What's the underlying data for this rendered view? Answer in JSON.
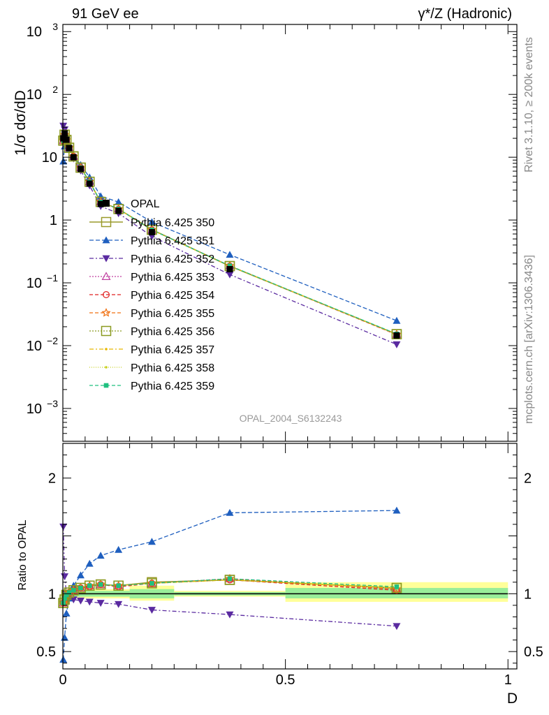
{
  "chart_data": {
    "type": "line",
    "header": {
      "left": "91 GeV ee",
      "right": "γ*/Z (Hadronic)"
    },
    "side_labels": {
      "rivet": "Rivet 3.1.10, ≥ 200k events",
      "source": "mcplots.cern.ch [arXiv:1306.3436]"
    },
    "analysis_label": "OPAL_2004_S6132243",
    "xlabel": "D",
    "upper": {
      "ylabel": "1/σ dσ/dD",
      "yscale": "log",
      "ylim": [
        0.0003,
        1300
      ],
      "ytick_values": [
        0.001,
        0.01,
        0.1,
        1,
        10,
        100,
        1000
      ],
      "ytick_labels": [
        {
          "base": "10",
          "exp": "−3"
        },
        {
          "base": "10",
          "exp": "−2"
        },
        {
          "base": "10",
          "exp": "−1"
        },
        {
          "base": "1",
          "exp": ""
        },
        {
          "base": "10",
          "exp": ""
        },
        {
          "base": "10",
          "exp": "2"
        },
        {
          "base": "10",
          "exp": "3"
        }
      ]
    },
    "lower": {
      "ylabel": "Ratio to OPAL",
      "ylim": [
        0.35,
        2.3
      ],
      "ytick_values": [
        0.5,
        1,
        2
      ],
      "ytick_labels": [
        "0.5",
        "1",
        "2"
      ]
    },
    "xlim": [
      0,
      1.02
    ],
    "xtick_values": [
      0,
      0.5,
      1
    ],
    "xtick_labels": [
      "0",
      "0.5",
      "1"
    ],
    "x": [
      0.001,
      0.004,
      0.008,
      0.014,
      0.024,
      0.04,
      0.06,
      0.085,
      0.125,
      0.2,
      0.375,
      0.75
    ],
    "data": {
      "name": "OPAL",
      "values": [
        20,
        24,
        19,
        14,
        10,
        6.5,
        3.8,
        1.8,
        1.4,
        0.64,
        0.165,
        0.0145
      ],
      "bands": [
        {
          "x0": 0.0,
          "x1": 0.15,
          "inner": [
            0.975,
            1.025
          ],
          "outer": [
            0.96,
            1.04
          ]
        },
        {
          "x0": 0.15,
          "x1": 0.25,
          "inner": [
            0.96,
            1.04
          ],
          "outer": [
            0.94,
            1.07
          ]
        },
        {
          "x0": 0.25,
          "x1": 0.5,
          "inner": [
            0.985,
            1.015
          ],
          "outer": [
            0.975,
            1.025
          ]
        },
        {
          "x0": 0.5,
          "x1": 1.0,
          "inner": [
            0.96,
            1.05
          ],
          "outer": [
            0.93,
            1.1
          ]
        }
      ]
    },
    "series": [
      {
        "name": "Pythia 6.425 350",
        "color": "#9a9a2a",
        "dash": "",
        "marker": "square-open",
        "ratio": [
          0.92,
          0.95,
          0.99,
          1.01,
          1.03,
          1.05,
          1.07,
          1.08,
          1.07,
          1.1,
          1.12,
          1.05
        ]
      },
      {
        "name": "Pythia 6.425 351",
        "color": "#1f5fbf",
        "dash": "6,3",
        "marker": "triangle-up",
        "ratio": [
          0.43,
          0.62,
          0.83,
          0.96,
          1.07,
          1.16,
          1.26,
          1.33,
          1.38,
          1.45,
          1.7,
          1.72
        ]
      },
      {
        "name": "Pythia 6.425 352",
        "color": "#5a2aa0",
        "dash": "6,3,2,3",
        "marker": "triangle-down",
        "ratio": [
          1.58,
          1.15,
          1.0,
          0.97,
          0.95,
          0.94,
          0.93,
          0.92,
          0.91,
          0.86,
          0.82,
          0.72
        ]
      },
      {
        "name": "Pythia 6.425 353",
        "color": "#c040a0",
        "dash": "2,2",
        "marker": "triangle-open",
        "ratio": [
          0.92,
          0.95,
          0.99,
          1.01,
          1.03,
          1.05,
          1.07,
          1.08,
          1.07,
          1.09,
          1.13,
          1.04
        ]
      },
      {
        "name": "Pythia 6.425 354",
        "color": "#e02020",
        "dash": "5,3",
        "marker": "circle-open",
        "ratio": [
          0.92,
          0.95,
          0.98,
          1.01,
          1.03,
          1.05,
          1.06,
          1.08,
          1.06,
          1.09,
          1.12,
          1.03
        ]
      },
      {
        "name": "Pythia 6.425 355",
        "color": "#f07010",
        "dash": "5,3",
        "marker": "star-open",
        "ratio": [
          0.92,
          0.95,
          0.99,
          1.01,
          1.03,
          1.05,
          1.07,
          1.08,
          1.07,
          1.09,
          1.13,
          1.04
        ]
      },
      {
        "name": "Pythia 6.425 356",
        "color": "#8a9a20",
        "dash": "2,2",
        "marker": "square-open",
        "ratio": [
          0.92,
          0.95,
          0.99,
          1.01,
          1.03,
          1.05,
          1.07,
          1.08,
          1.07,
          1.09,
          1.12,
          1.05
        ]
      },
      {
        "name": "Pythia 6.425 357",
        "color": "#e8b800",
        "dash": "6,3,2,3",
        "marker": "small",
        "ratio": [
          0.92,
          0.95,
          0.99,
          1.01,
          1.03,
          1.05,
          1.07,
          1.08,
          1.07,
          1.09,
          1.12,
          1.05
        ]
      },
      {
        "name": "Pythia 6.425 358",
        "color": "#c8d020",
        "dash": "1,2",
        "marker": "small",
        "ratio": [
          0.92,
          0.95,
          0.99,
          1.01,
          1.03,
          1.05,
          1.07,
          1.08,
          1.07,
          1.09,
          1.12,
          1.05
        ]
      },
      {
        "name": "Pythia 6.425 359",
        "color": "#20c080",
        "dash": "5,3",
        "marker": "square-filled",
        "ratio": [
          0.92,
          0.96,
          0.99,
          1.01,
          1.03,
          1.05,
          1.07,
          1.08,
          1.07,
          1.09,
          1.13,
          1.06
        ]
      }
    ]
  }
}
